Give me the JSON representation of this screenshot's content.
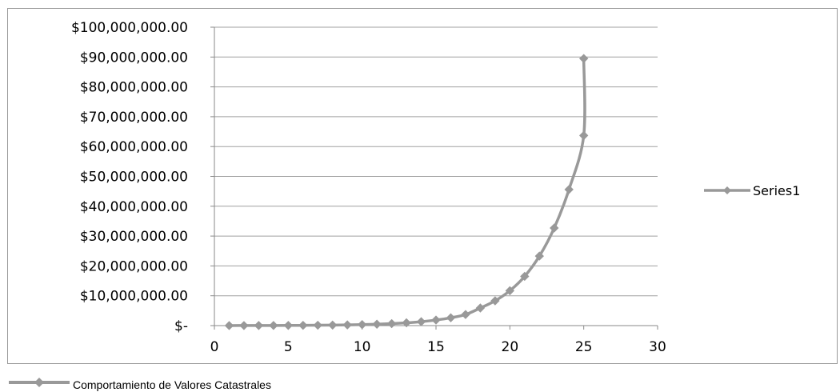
{
  "chart_data": {
    "type": "line",
    "x": [
      1,
      2,
      3,
      4,
      5,
      6,
      7,
      8,
      9,
      10,
      11,
      12,
      13,
      14,
      15,
      16,
      17,
      18,
      19,
      20,
      21,
      22,
      23,
      24,
      25
    ],
    "series": [
      {
        "name": "Series1",
        "color": "#999999",
        "values": [
          15000,
          21000,
          30000,
          42000,
          59000,
          83000,
          118000,
          166000,
          235000,
          332000,
          469000,
          662000,
          935000,
          1320000,
          1860000,
          2630000,
          3710000,
          5900000,
          8300000,
          11700000,
          16500000,
          23300000,
          32700000,
          45600000,
          63700000
        ]
      }
    ],
    "extra_last_point": {
      "x": 25,
      "y": 89500000
    },
    "xlim": [
      0,
      30
    ],
    "ylim": [
      0,
      100000000
    ],
    "x_ticks": [
      0,
      5,
      10,
      15,
      20,
      25,
      30
    ],
    "x_tick_labels": [
      "0",
      "5",
      "10",
      "15",
      "20",
      "25",
      "30"
    ],
    "y_ticks": [
      0,
      10000000,
      20000000,
      30000000,
      40000000,
      50000000,
      60000000,
      70000000,
      80000000,
      90000000,
      100000000
    ],
    "y_tick_labels": [
      "$-",
      "$10,000,000.00",
      "$20,000,000.00",
      "$30,000,000.00",
      "$40,000,000.00",
      "$50,000,000.00",
      "$60,000,000.00",
      "$70,000,000.00",
      "$80,000,000.00",
      "$90,000,000.00",
      "$100,000,000.00"
    ],
    "grid": "horizontal",
    "legend_position": "right"
  },
  "caption": {
    "text": "Comportamiento de Valores Catastrales",
    "color": "#999999"
  }
}
